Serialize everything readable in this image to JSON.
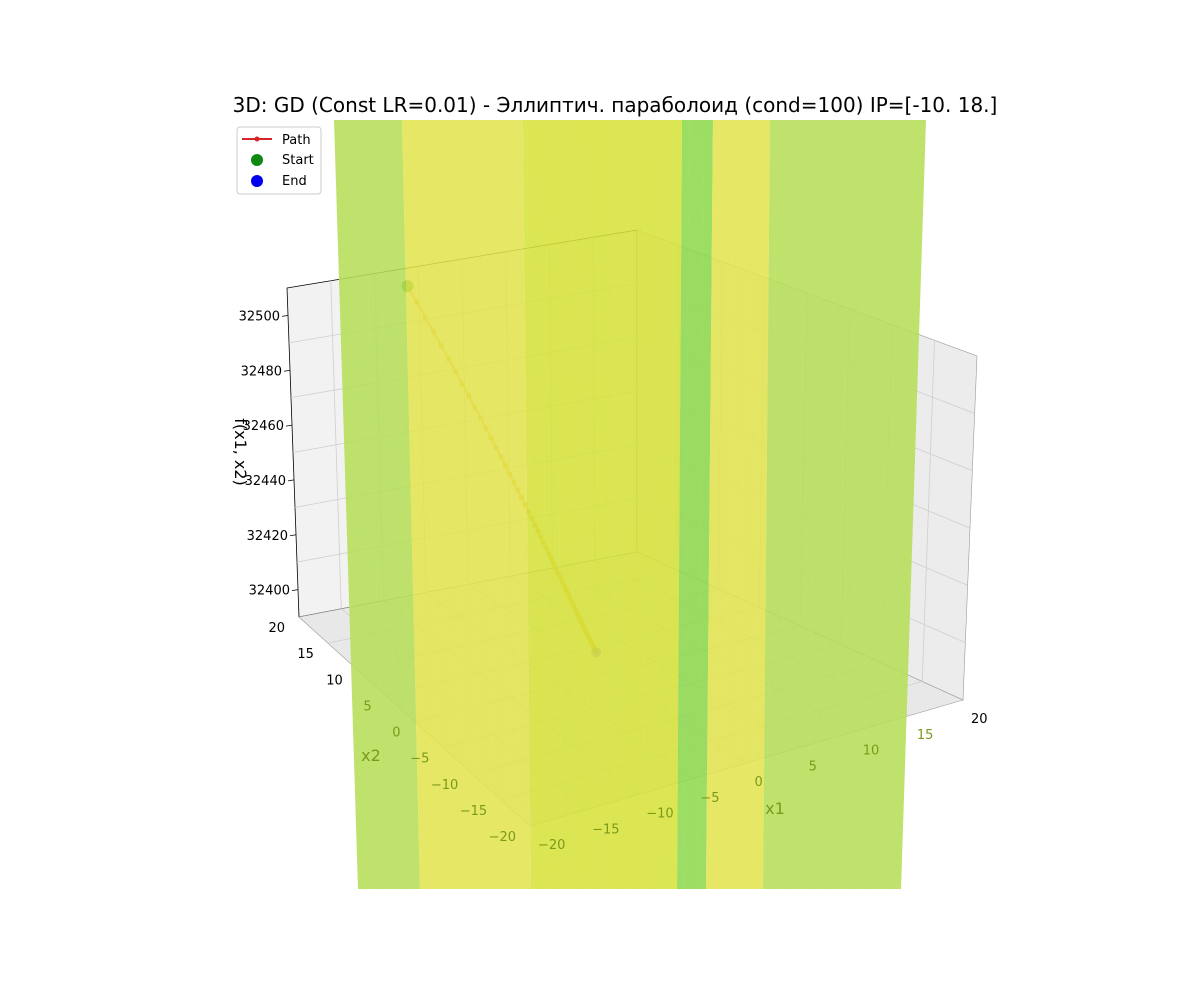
{
  "chart_data": {
    "type": "surface3d",
    "title": "3D: GD (Const LR=0.01) - Эллиптич. параболоид (cond=100) IP=[-10.  18.]",
    "xlabel": "x1",
    "ylabel": "x2",
    "zlabel": "f(x1, x2)",
    "xlim": [
      -20,
      20
    ],
    "ylim": [
      -20,
      20
    ],
    "zlim": [
      32390,
      32510
    ],
    "x_ticks": [
      "−20",
      "−15",
      "−10",
      "−5",
      "0",
      "5",
      "10",
      "15",
      "20"
    ],
    "y_ticks": [
      "−20",
      "−15",
      "−10",
      "−5",
      "0",
      "5",
      "10",
      "15",
      "20"
    ],
    "z_ticks": [
      "32400",
      "32420",
      "32440",
      "32460",
      "32480",
      "32500"
    ],
    "grid": true,
    "legend_placement": "top-left",
    "legend": [
      {
        "label": "Path",
        "marker": "line-dot",
        "color": "#d62728"
      },
      {
        "label": "Start",
        "marker": "dot",
        "color": "#118811"
      },
      {
        "label": "End",
        "marker": "dot",
        "color": "#0000ee"
      }
    ],
    "series": [
      {
        "name": "Path",
        "start": [
          -10,
          18
        ],
        "steps": 60,
        "z_start": 32503,
        "z_end": 32395
      }
    ],
    "surface_colors": [
      "#b5de58",
      "#e2e44f",
      "#d6e23a",
      "#8ed84e"
    ]
  }
}
